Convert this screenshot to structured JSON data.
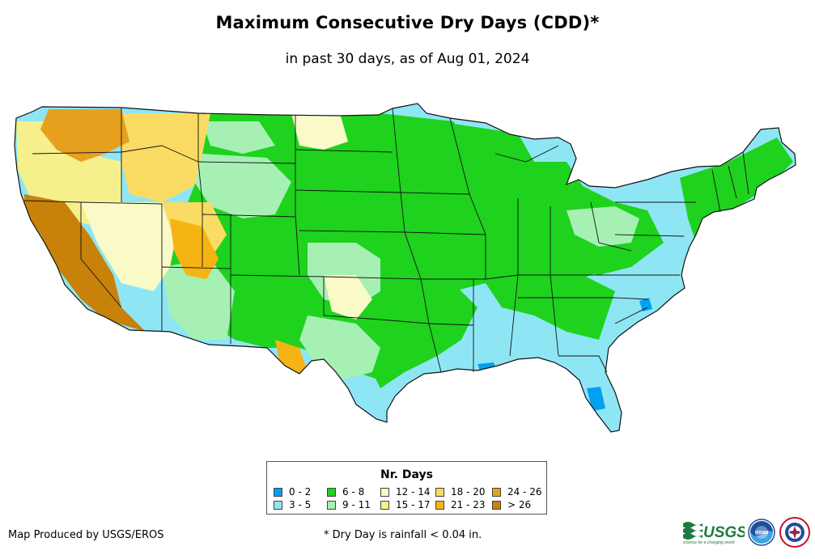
{
  "title": "Maximum Consecutive Dry Days (CDD)*",
  "subtitle": "in past 30 days, as of Aug 01, 2024",
  "legend": {
    "title": "Nr. Days",
    "items": [
      {
        "label": "0 - 2",
        "color": "#00a0f0"
      },
      {
        "label": "3 - 5",
        "color": "#8ee6f5"
      },
      {
        "label": "6 - 8",
        "color": "#1ed21e"
      },
      {
        "label": "9 - 11",
        "color": "#a6f0b4"
      },
      {
        "label": "12 - 14",
        "color": "#fafac8"
      },
      {
        "label": "15 - 17",
        "color": "#f5f08c"
      },
      {
        "label": "18 - 20",
        "color": "#fadc64"
      },
      {
        "label": "21 - 23",
        "color": "#f5b414"
      },
      {
        "label": "24 - 26",
        "color": "#e6a01e"
      },
      {
        "label": "> 26",
        "color": "#c8820a"
      }
    ]
  },
  "credit": "Map Produced by USGS/EROS",
  "footnote": "* Dry Day is rainfall < 0.04 in.",
  "logos": {
    "usgs_text": "USGS",
    "usgs_tagline": "science for a changing world",
    "noaa_text": "noaa",
    "nws_text": "NWS"
  },
  "colors": {
    "state_border": "#111111",
    "logo_green": "#1f7a3e",
    "noaa_blue": "#1d4f9c",
    "nws_red": "#c8102e"
  }
}
